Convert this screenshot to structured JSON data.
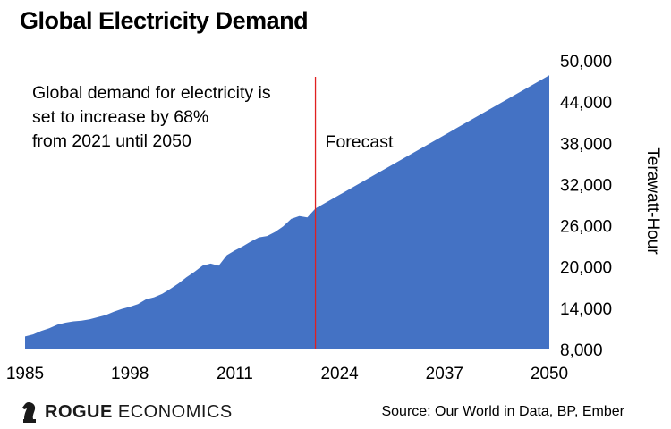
{
  "title": "Global Electricity Demand",
  "brand": {
    "bold": "ROGUE",
    "rest": " ECONOMICS",
    "icon": "knight-chess-icon"
  },
  "source": "Source: Our World in Data, BP, Ember",
  "colors": {
    "area": "#4472c4",
    "forecast_line": "#e02020",
    "text": "#000000"
  },
  "chart_data": {
    "type": "area",
    "title": "Global Electricity Demand",
    "ylabel": "Terawatt-Hour",
    "xlabel": "",
    "xlim": [
      1985,
      2050
    ],
    "ylim": [
      8000,
      50000
    ],
    "x_ticks": [
      1985,
      1998,
      2011,
      2024,
      2037,
      2050
    ],
    "y_ticks": [
      8000,
      14000,
      20000,
      26000,
      32000,
      38000,
      44000,
      50000
    ],
    "y_tick_labels": [
      "8,000",
      "14,000",
      "20,000",
      "26,000",
      "32,000",
      "38,000",
      "44,000",
      "50,000"
    ],
    "grid": false,
    "x": [
      1985,
      1986,
      1987,
      1988,
      1989,
      1990,
      1991,
      1992,
      1993,
      1994,
      1995,
      1996,
      1997,
      1998,
      1999,
      2000,
      2001,
      2002,
      2003,
      2004,
      2005,
      2006,
      2007,
      2008,
      2009,
      2010,
      2011,
      2012,
      2013,
      2014,
      2015,
      2016,
      2017,
      2018,
      2019,
      2020,
      2021,
      2050
    ],
    "values": [
      9900,
      10200,
      10700,
      11100,
      11600,
      11900,
      12100,
      12200,
      12400,
      12700,
      13000,
      13500,
      13900,
      14200,
      14600,
      15300,
      15600,
      16100,
      16800,
      17600,
      18500,
      19300,
      20200,
      20500,
      20200,
      21700,
      22400,
      23000,
      23700,
      24300,
      24500,
      25100,
      25900,
      27000,
      27400,
      27200,
      28500,
      47900
    ],
    "forecast_start": 2021,
    "annotations": [
      {
        "text_lines": [
          "Global demand for electricity is",
          "set to increase by 68%",
          "from 2021 until 2050"
        ]
      },
      {
        "text": "Forecast"
      }
    ]
  }
}
